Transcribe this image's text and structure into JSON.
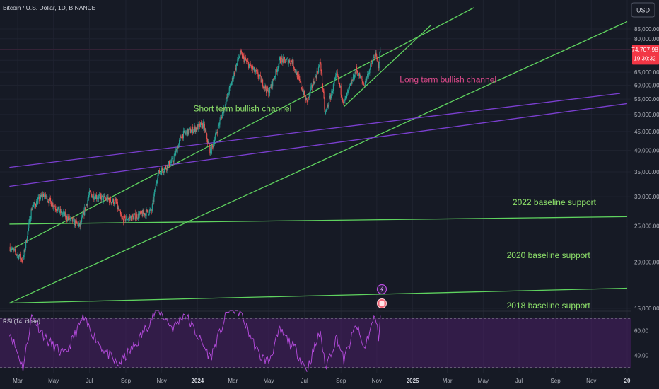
{
  "header": {
    "symbol_title": "Bitcoin / U.S. Dollar, 1D, BINANCE"
  },
  "currency_button": {
    "label": "USD"
  },
  "price_badge": {
    "price": "74,707.98",
    "countdown": "19:30:32"
  },
  "rsi_label": "RSI (14, close)",
  "colors": {
    "background": "#161a25",
    "candle_up": "#26a69a",
    "candle_down": "#ef5350",
    "green_lines": "#5fd35f",
    "purple_lines": "#7b3fd0",
    "price_line": "#c2185b",
    "price_badge": "#f23645",
    "rsi_line": "#b84ce0",
    "rsi_band": "#4a1f66",
    "label_pink": "#e04a8c",
    "label_green": "#8fe36b"
  },
  "chart_data": [
    {
      "type": "candlestick",
      "title": "Bitcoin / U.S. Dollar, 1D, BINANCE",
      "y_axis": {
        "scale": "log",
        "ticks": [
          "85,000.00",
          "80,000.00",
          "75,000.00",
          "70,000.00",
          "65,000.00",
          "60,000.00",
          "55,000.00",
          "50,000.00",
          "45,000.00",
          "40,000.00",
          "35,000.00",
          "30,000.00",
          "25,000.00",
          "20,000.00",
          "15,000.00"
        ],
        "tick_values": [
          85000,
          80000,
          75000,
          70000,
          65000,
          60000,
          55000,
          50000,
          45000,
          40000,
          35000,
          30000,
          25000,
          20000,
          15000
        ]
      },
      "x_axis": {
        "ticks": [
          "Mar",
          "May",
          "Jul",
          "Sep",
          "Nov",
          "2024",
          "Mar",
          "May",
          "Jul",
          "Sep",
          "Nov",
          "2025",
          "Mar",
          "May",
          "Jul",
          "Sep",
          "Nov",
          "20"
        ],
        "tick_dates": [
          "2023-03-01",
          "2023-05-01",
          "2023-07-01",
          "2023-09-01",
          "2023-11-01",
          "2024-01-01",
          "2024-03-01",
          "2024-05-01",
          "2024-07-01",
          "2024-09-01",
          "2024-11-01",
          "2025-01-01",
          "2025-03-01",
          "2025-05-01",
          "2025-07-01",
          "2025-09-01",
          "2025-11-01",
          "2026-01-01"
        ]
      },
      "current_price": 74707.98,
      "price_path": [
        {
          "date": "2023-02-15",
          "close": 22000
        },
        {
          "date": "2023-03-10",
          "close": 20200
        },
        {
          "date": "2023-03-25",
          "close": 28000
        },
        {
          "date": "2023-04-14",
          "close": 30400
        },
        {
          "date": "2023-05-15",
          "close": 27000
        },
        {
          "date": "2023-06-15",
          "close": 25000
        },
        {
          "date": "2023-07-01",
          "close": 30500
        },
        {
          "date": "2023-08-15",
          "close": 29000
        },
        {
          "date": "2023-08-25",
          "close": 26000
        },
        {
          "date": "2023-09-15",
          "close": 26500
        },
        {
          "date": "2023-10-15",
          "close": 27500
        },
        {
          "date": "2023-10-25",
          "close": 34500
        },
        {
          "date": "2023-11-20",
          "close": 37500
        },
        {
          "date": "2023-12-05",
          "close": 44000
        },
        {
          "date": "2024-01-11",
          "close": 47000
        },
        {
          "date": "2024-01-23",
          "close": 39500
        },
        {
          "date": "2024-02-15",
          "close": 52000
        },
        {
          "date": "2024-03-13",
          "close": 73000
        },
        {
          "date": "2024-04-15",
          "close": 63000
        },
        {
          "date": "2024-05-01",
          "close": 57000
        },
        {
          "date": "2024-05-20",
          "close": 70000
        },
        {
          "date": "2024-06-10",
          "close": 69500
        },
        {
          "date": "2024-07-05",
          "close": 54000
        },
        {
          "date": "2024-07-28",
          "close": 69000
        },
        {
          "date": "2024-08-05",
          "close": 50000
        },
        {
          "date": "2024-08-25",
          "close": 64000
        },
        {
          "date": "2024-09-06",
          "close": 53500
        },
        {
          "date": "2024-09-27",
          "close": 66000
        },
        {
          "date": "2024-10-10",
          "close": 60000
        },
        {
          "date": "2024-10-29",
          "close": 72500
        },
        {
          "date": "2024-11-04",
          "close": 68000
        },
        {
          "date": "2024-11-07",
          "close": 74707.98
        }
      ],
      "trend_lines": [
        {
          "kind": "short-term-channel-upper",
          "color": "green",
          "start": {
            "date": "2023-02-15",
            "price": 21500
          },
          "end": {
            "date": "2025-04-15",
            "price": 97000
          }
        },
        {
          "kind": "short-term-channel-lower",
          "color": "green",
          "start": {
            "date": "2023-02-15",
            "price": 15500
          },
          "end": {
            "date": "2026-01-01",
            "price": 89000
          }
        },
        {
          "kind": "steep-support",
          "color": "green",
          "start": {
            "date": "2024-09-06",
            "price": 52500
          },
          "end": {
            "date": "2025-02-01",
            "price": 87000
          }
        },
        {
          "kind": "purple-upper",
          "color": "purple",
          "start": {
            "date": "2023-02-15",
            "price": 36000
          },
          "end": {
            "date": "2025-12-20",
            "price": 57000
          }
        },
        {
          "kind": "purple-lower",
          "color": "purple",
          "start": {
            "date": "2023-02-15",
            "price": 32000
          },
          "end": {
            "date": "2026-01-01",
            "price": 53500
          }
        },
        {
          "kind": "2022-baseline-support",
          "color": "green",
          "start": {
            "date": "2023-02-15",
            "price": 25300
          },
          "end": {
            "date": "2026-01-01",
            "price": 26500
          }
        },
        {
          "kind": "2020-baseline-support",
          "color": "green",
          "start": {
            "date": "2023-02-15",
            "price": 15500
          },
          "end": {
            "date": "2026-01-01",
            "price": 17000
          }
        }
      ],
      "annotations": [
        {
          "text": "Short term bullish channel",
          "date": "2023-12-25",
          "price": 51000
        },
        {
          "text": "Long term bullish channel",
          "date": "2024-12-10",
          "price": 61000
        },
        {
          "text": "2022 baseline support",
          "date": "2025-06-20",
          "price": 28500
        },
        {
          "text": "2020 baseline support",
          "date": "2025-06-10",
          "price": 20500
        },
        {
          "text": "2018 baseline support",
          "date": "2025-06-10",
          "price": 15000
        }
      ]
    },
    {
      "type": "line",
      "title": "RSI (14, close)",
      "y_axis": {
        "ticks": [
          "60.00",
          "40.00"
        ],
        "tick_values": [
          60,
          40
        ],
        "range": [
          26,
          78
        ]
      },
      "band": [
        30,
        70
      ],
      "rsi_path": [
        {
          "date": "2023-02-15",
          "value": 60
        },
        {
          "date": "2023-03-10",
          "value": 30
        },
        {
          "date": "2023-03-25",
          "value": 72
        },
        {
          "date": "2023-04-20",
          "value": 52
        },
        {
          "date": "2023-05-20",
          "value": 40
        },
        {
          "date": "2023-06-20",
          "value": 70
        },
        {
          "date": "2023-07-20",
          "value": 48
        },
        {
          "date": "2023-08-18",
          "value": 32
        },
        {
          "date": "2023-09-20",
          "value": 50
        },
        {
          "date": "2023-10-25",
          "value": 78
        },
        {
          "date": "2023-11-20",
          "value": 62
        },
        {
          "date": "2023-12-10",
          "value": 74
        },
        {
          "date": "2024-01-23",
          "value": 38
        },
        {
          "date": "2024-02-25",
          "value": 80
        },
        {
          "date": "2024-03-13",
          "value": 75
        },
        {
          "date": "2024-04-15",
          "value": 40
        },
        {
          "date": "2024-05-01",
          "value": 35
        },
        {
          "date": "2024-05-20",
          "value": 60
        },
        {
          "date": "2024-06-15",
          "value": 45
        },
        {
          "date": "2024-07-05",
          "value": 28
        },
        {
          "date": "2024-07-28",
          "value": 60
        },
        {
          "date": "2024-08-05",
          "value": 30
        },
        {
          "date": "2024-08-25",
          "value": 55
        },
        {
          "date": "2024-09-06",
          "value": 36
        },
        {
          "date": "2024-09-27",
          "value": 65
        },
        {
          "date": "2024-10-10",
          "value": 45
        },
        {
          "date": "2024-10-29",
          "value": 72
        },
        {
          "date": "2024-11-04",
          "value": 55
        },
        {
          "date": "2024-11-07",
          "value": 72
        }
      ]
    }
  ]
}
